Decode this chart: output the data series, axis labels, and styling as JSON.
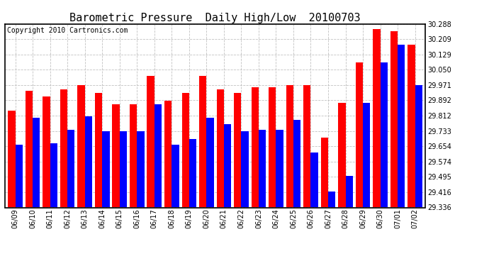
{
  "title": "Barometric Pressure  Daily High/Low  20100703",
  "copyright": "Copyright 2010 Cartronics.com",
  "dates": [
    "06/09",
    "06/10",
    "06/11",
    "06/12",
    "06/13",
    "06/14",
    "06/15",
    "06/16",
    "06/17",
    "06/18",
    "06/19",
    "06/20",
    "06/21",
    "06/22",
    "06/23",
    "06/24",
    "06/25",
    "06/26",
    "06/27",
    "06/28",
    "06/29",
    "06/30",
    "07/01",
    "07/02"
  ],
  "highs": [
    29.84,
    29.94,
    29.91,
    29.95,
    29.97,
    29.93,
    29.87,
    29.87,
    30.02,
    29.89,
    29.93,
    30.02,
    29.95,
    29.93,
    29.96,
    29.96,
    29.97,
    29.97,
    29.7,
    29.88,
    30.09,
    30.26,
    30.25,
    30.18
  ],
  "lows": [
    29.66,
    29.8,
    29.67,
    29.74,
    29.81,
    29.73,
    29.73,
    29.73,
    29.87,
    29.66,
    29.69,
    29.8,
    29.77,
    29.73,
    29.74,
    29.74,
    29.79,
    29.62,
    29.42,
    29.5,
    29.88,
    30.09,
    30.18,
    29.97
  ],
  "ylim_min": 29.336,
  "ylim_max": 30.288,
  "yticks": [
    29.336,
    29.416,
    29.495,
    29.574,
    29.654,
    29.733,
    29.812,
    29.892,
    29.971,
    30.05,
    30.129,
    30.209,
    30.288
  ],
  "bar_width": 0.42,
  "high_color": "#ff0000",
  "low_color": "#0000ff",
  "bg_color": "#ffffff",
  "grid_color": "#bbbbbb",
  "title_fontsize": 11,
  "tick_fontsize": 7,
  "copyright_fontsize": 7
}
